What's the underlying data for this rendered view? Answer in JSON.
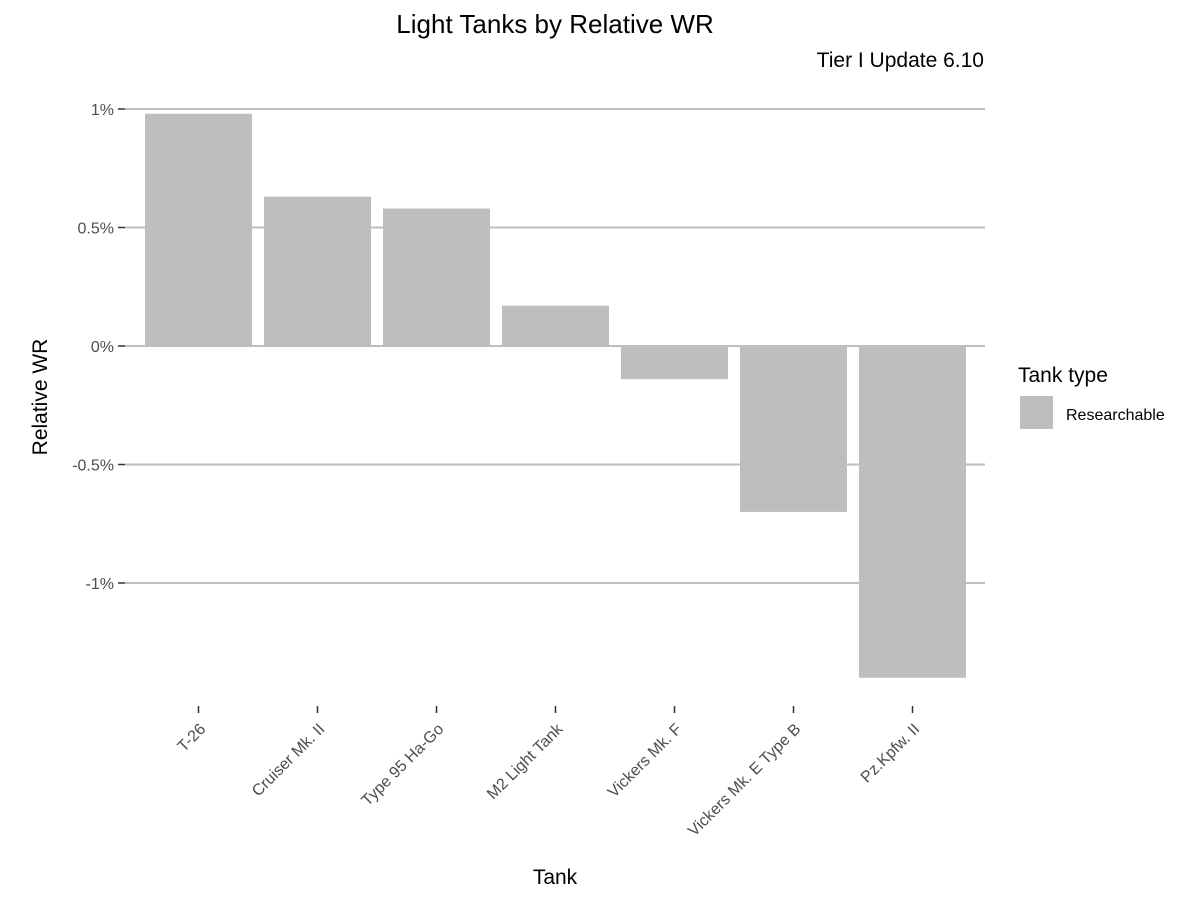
{
  "chart_data": {
    "type": "bar",
    "title": "Light Tanks by Relative WR",
    "subtitle": "Tier I Update 6.10",
    "xlabel": "Tank",
    "ylabel": "Relative WR",
    "categories": [
      "T-26",
      "Cruiser Mk. II",
      "Type 95 Ha-Go",
      "M2 Light Tank",
      "Vickers Mk. F",
      "Vickers Mk. E Type B",
      "Pz.Kpfw. II"
    ],
    "series": [
      {
        "name": "Researchable",
        "values": [
          0.98,
          0.63,
          0.58,
          0.17,
          -0.14,
          -0.7,
          -1.4
        ],
        "color": "#bebebe"
      }
    ],
    "ylim": [
      -1.5,
      1.05
    ],
    "yticks": [
      1,
      0.5,
      0,
      -0.5,
      -1
    ],
    "ytick_labels": [
      "1%",
      "0.5%",
      "0%",
      "-0.5%",
      "-1%"
    ],
    "grid": true,
    "gridline_color": "#bebebe",
    "legend": {
      "title": "Tank type",
      "position": "right",
      "entries": [
        "Researchable"
      ]
    }
  }
}
